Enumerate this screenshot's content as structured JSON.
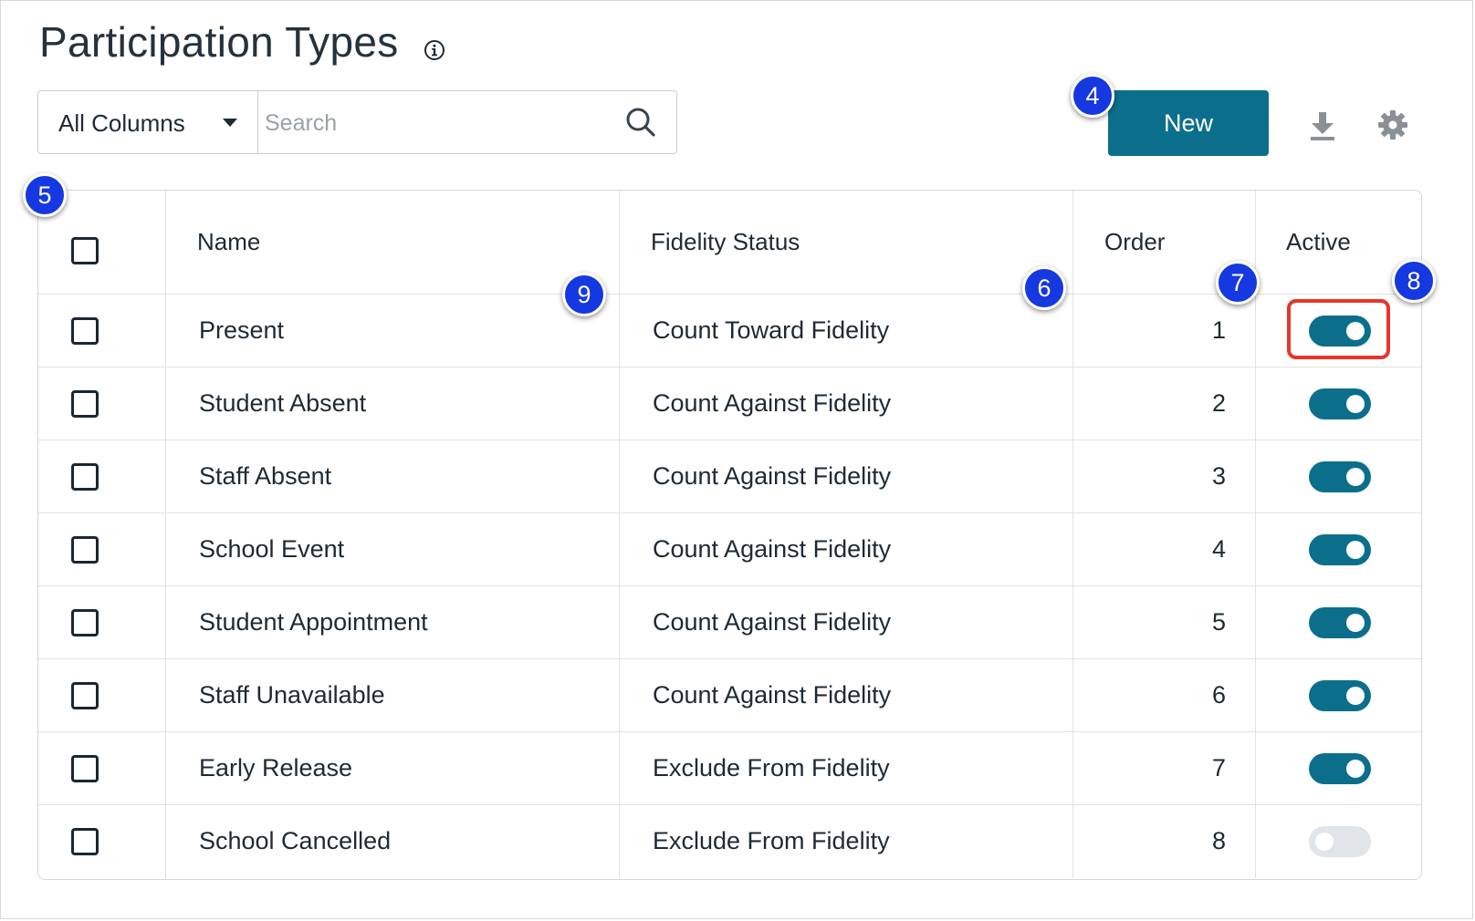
{
  "page": {
    "title": "Participation Types"
  },
  "toolbar": {
    "column_filter": "All Columns",
    "search_placeholder": "Search",
    "new_label": "New"
  },
  "icons": {
    "info": "info-icon",
    "search": "search-icon",
    "download": "download-icon",
    "settings": "gear-icon"
  },
  "colors": {
    "accent": "#0b6f8c",
    "toggle_off": "#e1e4e8",
    "highlight": "#e8352a",
    "marker": "#1638e0"
  },
  "table": {
    "headers": {
      "name": "Name",
      "fidelity": "Fidelity Status",
      "order": "Order",
      "active": "Active"
    },
    "rows": [
      {
        "name": "Present",
        "fidelity": "Count Toward Fidelity",
        "order": "1",
        "active": true
      },
      {
        "name": "Student Absent",
        "fidelity": "Count Against Fidelity",
        "order": "2",
        "active": true
      },
      {
        "name": "Staff Absent",
        "fidelity": "Count Against Fidelity",
        "order": "3",
        "active": true
      },
      {
        "name": "School Event",
        "fidelity": "Count Against Fidelity",
        "order": "4",
        "active": true
      },
      {
        "name": "Student Appointment",
        "fidelity": "Count Against Fidelity",
        "order": "5",
        "active": true
      },
      {
        "name": "Staff Unavailable",
        "fidelity": "Count Against Fidelity",
        "order": "6",
        "active": true
      },
      {
        "name": "Early Release",
        "fidelity": "Exclude From Fidelity",
        "order": "7",
        "active": true
      },
      {
        "name": "School Cancelled",
        "fidelity": "Exclude From Fidelity",
        "order": "8",
        "active": false
      }
    ]
  },
  "annotations": [
    "4",
    "5",
    "6",
    "7",
    "8",
    "9"
  ]
}
